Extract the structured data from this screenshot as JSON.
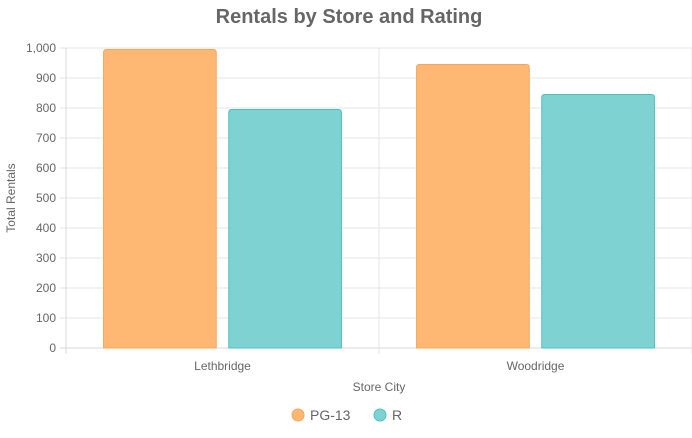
{
  "chart_data": {
    "type": "bar",
    "title": "Rentals by Store and Rating",
    "categories": [
      "Lethbridge",
      "Woodridge"
    ],
    "series": [
      {
        "name": "PG-13",
        "values": [
          995,
          945
        ],
        "color": "#FFB874",
        "border": "#F5A65A"
      },
      {
        "name": "R",
        "values": [
          795,
          845
        ],
        "color": "#7FD2D2",
        "border": "#4BC0C0"
      }
    ],
    "xlabel": "Store City",
    "ylabel": "Total Rentals",
    "ylim": [
      0,
      1000
    ],
    "yticks": [
      "0",
      "100",
      "200",
      "300",
      "400",
      "500",
      "600",
      "700",
      "800",
      "900",
      "1,000"
    ],
    "grid": true,
    "legend": "bottom"
  }
}
